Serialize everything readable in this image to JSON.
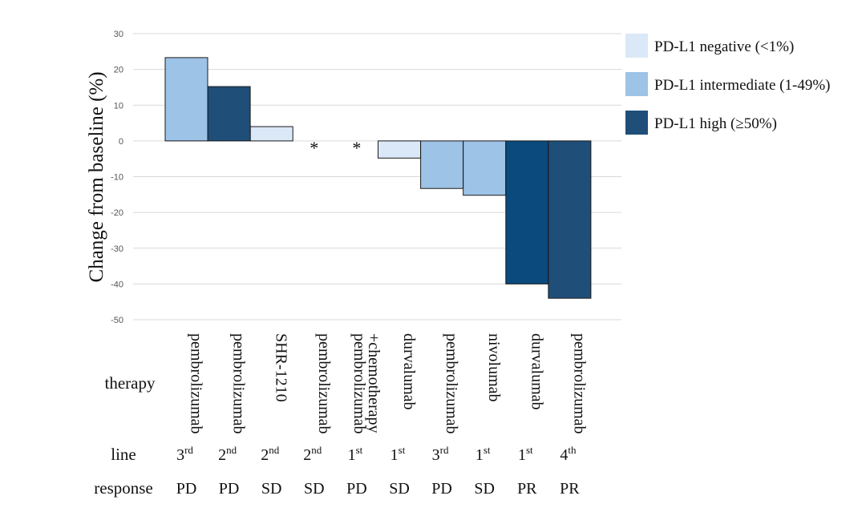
{
  "chart_data": {
    "type": "bar",
    "ylabel": "Change from baseline (%)",
    "ylim": [
      -50,
      30
    ],
    "yticks": [
      30,
      20,
      10,
      0,
      -10,
      -20,
      -30,
      -40,
      -50
    ],
    "grid": true,
    "legend_position": "top-right",
    "legend": [
      {
        "key": "negative",
        "label": "PD-L1 negative (<1%)",
        "color": "#dae8f7"
      },
      {
        "key": "intermediate",
        "label": "PD-L1 intermediate (1-49%)",
        "color": "#9dc3e6"
      },
      {
        "key": "high",
        "label": "PD-L1 high (≥50%)",
        "color": "#1f4e79"
      }
    ],
    "row_labels": {
      "therapy": "therapy",
      "line": "line",
      "response": "response"
    },
    "bars": [
      {
        "therapy": [
          "pembrolizumab"
        ],
        "line_num": "3",
        "line_sup": "rd",
        "response": "PD",
        "value": 23.3,
        "group": "intermediate",
        "color": "#9dc3e6"
      },
      {
        "therapy": [
          "pembrolizumab"
        ],
        "line_num": "2",
        "line_sup": "nd",
        "response": "PD",
        "value": 15.2,
        "group": "high",
        "color": "#1f4e79"
      },
      {
        "therapy": [
          "SHR-1210"
        ],
        "line_num": "2",
        "line_sup": "nd",
        "response": "SD",
        "value": 4.0,
        "group": "negative",
        "color": "#dae8f7"
      },
      {
        "therapy": [
          "pembrolizumab"
        ],
        "line_num": "2",
        "line_sup": "nd",
        "response": "SD",
        "value": null,
        "marker": "*"
      },
      {
        "therapy": [
          "pembrolizumab",
          "+chemotherapy"
        ],
        "line_num": "1",
        "line_sup": "st",
        "response": "PD",
        "value": null,
        "marker": "*"
      },
      {
        "therapy": [
          "durvalumab"
        ],
        "line_num": "1",
        "line_sup": "st",
        "response": "SD",
        "value": -4.8,
        "group": "negative",
        "color": "#dae8f7"
      },
      {
        "therapy": [
          "pembrolizumab"
        ],
        "line_num": "3",
        "line_sup": "rd",
        "response": "PD",
        "value": -13.3,
        "group": "intermediate",
        "color": "#9dc3e6"
      },
      {
        "therapy": [
          "nivolumab"
        ],
        "line_num": "1",
        "line_sup": "st",
        "response": "SD",
        "value": -15.2,
        "group": "intermediate",
        "color": "#9dc3e6"
      },
      {
        "therapy": [
          "durvalumab"
        ],
        "line_num": "1",
        "line_sup": "st",
        "response": "PR",
        "value": -40.0,
        "group": "high",
        "color": "#0b4a7d"
      },
      {
        "therapy": [
          "pembrolizumab"
        ],
        "line_num": "4",
        "line_sup": "th",
        "response": "PR",
        "value": -44.0,
        "group": "high",
        "color": "#1f4e79"
      }
    ]
  }
}
